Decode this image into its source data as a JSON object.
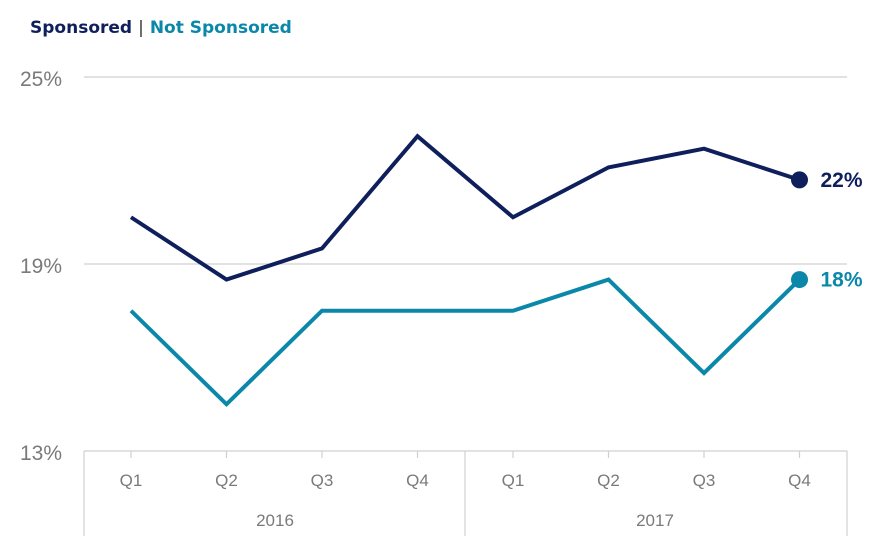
{
  "legend": {
    "sponsored_label": "Sponsored",
    "separator": "|",
    "not_sponsored_label": "Not Sponsored"
  },
  "colors": {
    "sponsored": "#0f1f5c",
    "not_sponsored": "#0a87a9",
    "grid": "#d0d0d0",
    "axis_text": "#7a7a7a"
  },
  "chart_data": {
    "type": "line",
    "title": "",
    "xlabel": "",
    "ylabel": "",
    "categories": [
      "Q1",
      "Q2",
      "Q3",
      "Q4",
      "Q1",
      "Q2",
      "Q3",
      "Q4"
    ],
    "groups": [
      {
        "label": "2016",
        "span": 4
      },
      {
        "label": "2017",
        "span": 4
      }
    ],
    "yticks": [
      "25%",
      "19%",
      "13%"
    ],
    "ytick_values": [
      25,
      19,
      13
    ],
    "ylim": [
      13,
      25
    ],
    "grid": true,
    "series": [
      {
        "name": "Sponsored",
        "values": [
          20.5,
          18.5,
          19.5,
          23.1,
          20.5,
          22.1,
          22.7,
          21.7
        ],
        "end_label": "22%"
      },
      {
        "name": "Not Sponsored",
        "values": [
          17.5,
          14.5,
          17.5,
          17.5,
          17.5,
          18.5,
          15.5,
          18.5
        ],
        "end_label": "18%"
      }
    ]
  }
}
